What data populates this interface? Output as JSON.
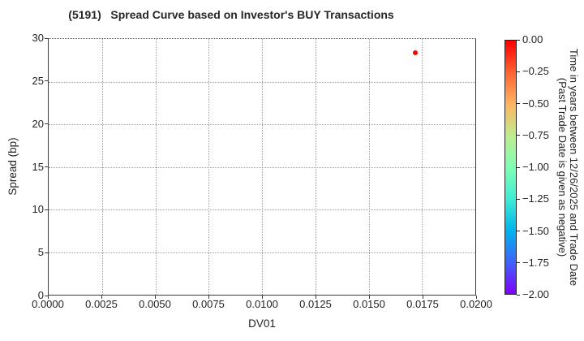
{
  "chart_data": {
    "type": "scatter",
    "title": "(5191)   Spread Curve based on Investor's BUY Transactions",
    "xlabel": "DV01",
    "ylabel": "Spread (bp)",
    "xlim": [
      0.0,
      0.02
    ],
    "ylim": [
      0,
      30
    ],
    "grid": true,
    "background": "#ffffff",
    "x_ticks": [
      {
        "value": 0.0,
        "label": "0.0000"
      },
      {
        "value": 0.0025,
        "label": "0.0025"
      },
      {
        "value": 0.005,
        "label": "0.0050"
      },
      {
        "value": 0.0075,
        "label": "0.0075"
      },
      {
        "value": 0.01,
        "label": "0.0100"
      },
      {
        "value": 0.0125,
        "label": "0.0125"
      },
      {
        "value": 0.015,
        "label": "0.0150"
      },
      {
        "value": 0.0175,
        "label": "0.0175"
      },
      {
        "value": 0.02,
        "label": "0.0200"
      }
    ],
    "y_ticks": [
      {
        "value": 0,
        "label": "0"
      },
      {
        "value": 5,
        "label": "5"
      },
      {
        "value": 10,
        "label": "10"
      },
      {
        "value": 15,
        "label": "15"
      },
      {
        "value": 20,
        "label": "20"
      },
      {
        "value": 25,
        "label": "25"
      },
      {
        "value": 30,
        "label": "30"
      }
    ],
    "points": [
      {
        "x": 0.0172,
        "y": 28.4,
        "color_value": 0.0,
        "color": "#ff0000"
      }
    ],
    "colorbar": {
      "label_line1": "Time in years between 12/26/2025 and Trade Date",
      "label_line2": "(Past Trade Date is given as negative)",
      "value_top": 0.0,
      "value_bottom": -2.0,
      "ticks": [
        {
          "value": 0.0,
          "label": "0.00"
        },
        {
          "value": -0.25,
          "label": "−0.25"
        },
        {
          "value": -0.5,
          "label": "−0.50"
        },
        {
          "value": -0.75,
          "label": "−0.75"
        },
        {
          "value": -1.0,
          "label": "−1.00"
        },
        {
          "value": -1.25,
          "label": "−1.25"
        },
        {
          "value": -1.5,
          "label": "−1.50"
        },
        {
          "value": -1.75,
          "label": "−1.75"
        },
        {
          "value": -2.0,
          "label": "−2.00"
        }
      ],
      "gradient": [
        {
          "pos": 0.0,
          "color": "#ff0000"
        },
        {
          "pos": 12.5,
          "color": "#ff6232"
        },
        {
          "pos": 25.0,
          "color": "#ffb462"
        },
        {
          "pos": 37.5,
          "color": "#bfec8e"
        },
        {
          "pos": 50.0,
          "color": "#80ffb4"
        },
        {
          "pos": 62.5,
          "color": "#40ecd4"
        },
        {
          "pos": 75.0,
          "color": "#00b4ec"
        },
        {
          "pos": 87.5,
          "color": "#4062fa"
        },
        {
          "pos": 100.0,
          "color": "#8000ff"
        }
      ]
    }
  }
}
